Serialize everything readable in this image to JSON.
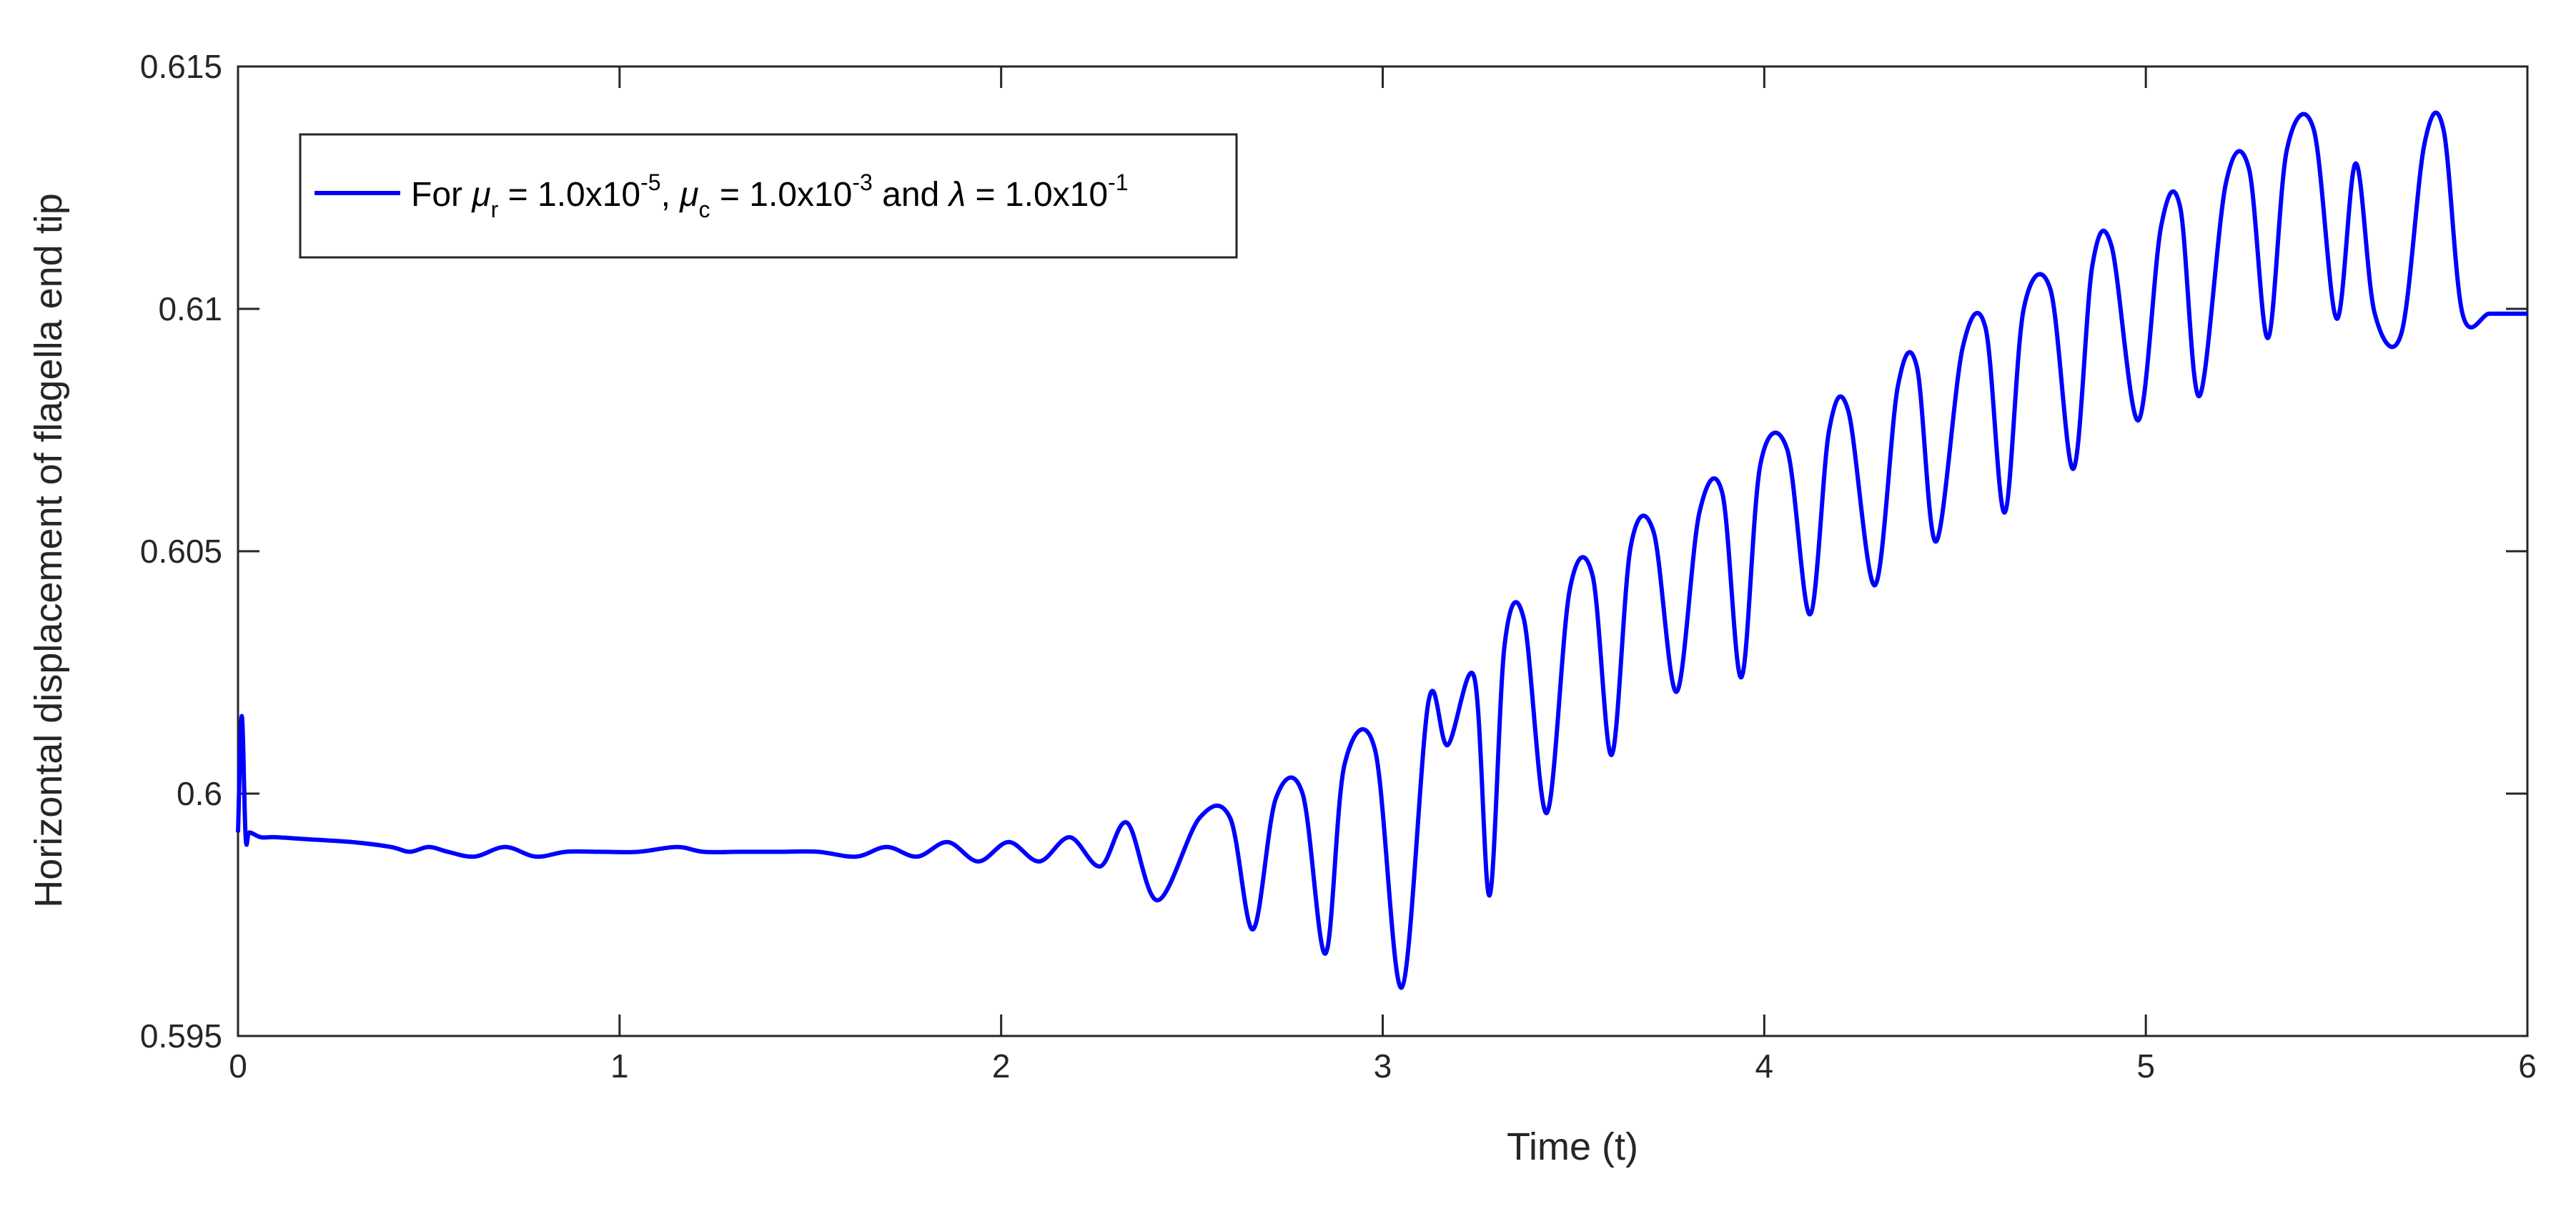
{
  "chart_data": {
    "type": "line",
    "title": "",
    "xlabel": "Time (t)",
    "ylabel": "Horizontal displacement of flagella end tip",
    "xlim": [
      0,
      6
    ],
    "ylim": [
      0.595,
      0.615
    ],
    "xticks": [
      0,
      1,
      2,
      3,
      4,
      5,
      6
    ],
    "xtick_labels": [
      "0",
      "1",
      "2",
      "3",
      "4",
      "5",
      "6"
    ],
    "yticks": [
      0.595,
      0.6,
      0.605,
      0.61,
      0.615
    ],
    "ytick_labels": [
      "0.595",
      "0.6",
      "0.605",
      "0.61",
      "0.615"
    ],
    "grid": false,
    "legend_position": "top-left",
    "legend": {
      "prefix": "For ",
      "mu": "μ",
      "sub_r": "r",
      "eq_r": " = 1.0x10",
      "exp_r": "-5",
      "comma": ", ",
      "sub_c": "c",
      "eq_c": " = 1.0x10",
      "exp_c": "-3",
      "and": " and ",
      "lambda": "λ",
      "eq_l": " = 1.0x10",
      "exp_l": "-1"
    },
    "series": [
      {
        "color": "#0000ff",
        "x": [
          0,
          0.01,
          0.02,
          0.03,
          0.06,
          0.1,
          0.2,
          0.3,
          0.4,
          0.45,
          0.5,
          0.55,
          0.62,
          0.7,
          0.78,
          0.86,
          0.95,
          1.05,
          1.15,
          1.22,
          1.32,
          1.42,
          1.52,
          1.62,
          1.7,
          1.78,
          1.86,
          1.94,
          2.02,
          2.1,
          2.18,
          2.26,
          2.33,
          2.41,
          2.52,
          2.6,
          2.66,
          2.72,
          2.79,
          2.85,
          2.9,
          2.98,
          3.05,
          3.12,
          3.17,
          3.24,
          3.28,
          3.32,
          3.37,
          3.43,
          3.49,
          3.55,
          3.6,
          3.65,
          3.71,
          3.77,
          3.83,
          3.89,
          3.94,
          3.99,
          4.06,
          4.12,
          4.17,
          4.22,
          4.29,
          4.35,
          4.4,
          4.45,
          4.52,
          4.58,
          4.63,
          4.68,
          4.75,
          4.81,
          4.86,
          4.91,
          4.98,
          5.04,
          5.09,
          5.14,
          5.21,
          5.27,
          5.32,
          5.37,
          5.44,
          5.5,
          5.55,
          5.6,
          5.67,
          5.73,
          5.78,
          5.83,
          5.9,
          5.96,
          6.0
        ],
        "y": [
          0.5992,
          0.6016,
          0.5991,
          0.5992,
          0.5991,
          0.5991,
          0.59905,
          0.599,
          0.5989,
          0.5988,
          0.5989,
          0.5988,
          0.5987,
          0.5989,
          0.5987,
          0.5988,
          0.5988,
          0.5988,
          0.5989,
          0.5988,
          0.5988,
          0.5988,
          0.5988,
          0.5987,
          0.5989,
          0.5987,
          0.599,
          0.5986,
          0.599,
          0.5986,
          0.5991,
          0.5985,
          0.5994,
          0.5978,
          0.5995,
          0.5995,
          0.5972,
          0.5999,
          0.6,
          0.5967,
          0.6006,
          0.6009,
          0.596,
          0.6019,
          0.601,
          0.6024,
          0.5979,
          0.6031,
          0.6036,
          0.5996,
          0.6042,
          0.6045,
          0.6008,
          0.6051,
          0.6054,
          0.6021,
          0.6058,
          0.6062,
          0.6024,
          0.6068,
          0.6071,
          0.6037,
          0.6075,
          0.6079,
          0.6043,
          0.6084,
          0.6088,
          0.6052,
          0.6092,
          0.6096,
          0.6058,
          0.61,
          0.6104,
          0.6067,
          0.6109,
          0.6113,
          0.6077,
          0.6117,
          0.6121,
          0.6082,
          0.6126,
          0.6129,
          0.6094,
          0.6133,
          0.6137,
          0.6098,
          0.613,
          0.6099,
          0.6095,
          0.6134,
          0.6137,
          0.6099,
          0.6099,
          0.6099,
          0.6099
        ]
      }
    ]
  }
}
